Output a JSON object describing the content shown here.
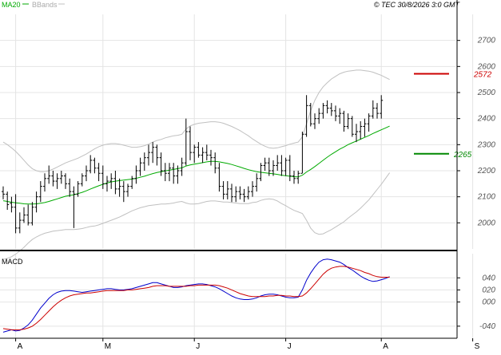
{
  "header": {
    "ma_label": "MA20",
    "bb_label": "BBands",
    "copyright": "© TEC 30/8/2026 3:0 GMT"
  },
  "colors": {
    "price_bar": "#000000",
    "ma20": "#00aa00",
    "bbands": "#c0c0c0",
    "resistance": "#cc0000",
    "support": "#008800",
    "macd_line": "#0000cc",
    "signal_line": "#cc0000",
    "grid": "#e4e4e4"
  },
  "chart_data": [
    {
      "type": "ohlc",
      "panel": "price",
      "ylim": [
        1900,
        2800
      ],
      "y_ticks": [
        2000,
        2100,
        2200,
        2300,
        2400,
        2500,
        2600,
        2700
      ],
      "x_month_labels": [
        {
          "label": "A",
          "index": 3
        },
        {
          "label": "M",
          "index": 24
        },
        {
          "label": "J",
          "index": 46
        },
        {
          "label": "J",
          "index": 68
        },
        {
          "label": "A",
          "index": 91
        },
        {
          "label": "S",
          "index": 113
        }
      ],
      "levels": [
        {
          "name": "resistance",
          "value": 2572,
          "label": "2572"
        },
        {
          "name": "support",
          "value": 2265,
          "label": "2265"
        }
      ],
      "bars": [
        [
          2120,
          2140,
          2090,
          2110
        ],
        [
          2110,
          2120,
          2050,
          2070
        ],
        [
          2075,
          2100,
          2040,
          2060
        ],
        [
          2060,
          2110,
          1960,
          1980
        ],
        [
          1980,
          2040,
          1960,
          2010
        ],
        [
          2010,
          2060,
          2000,
          2030
        ],
        [
          2030,
          2070,
          1990,
          2000
        ],
        [
          2000,
          2080,
          1990,
          2060
        ],
        [
          2060,
          2120,
          2040,
          2100
        ],
        [
          2100,
          2160,
          2080,
          2140
        ],
        [
          2140,
          2190,
          2120,
          2170
        ],
        [
          2170,
          2220,
          2150,
          2180
        ],
        [
          2180,
          2200,
          2140,
          2160
        ],
        [
          2160,
          2190,
          2130,
          2170
        ],
        [
          2170,
          2200,
          2150,
          2180
        ],
        [
          2180,
          2190,
          2130,
          2150
        ],
        [
          2150,
          2170,
          2100,
          2120
        ],
        [
          2120,
          2140,
          1980,
          2110
        ],
        [
          2110,
          2160,
          2100,
          2150
        ],
        [
          2150,
          2190,
          2140,
          2180
        ],
        [
          2180,
          2220,
          2160,
          2200
        ],
        [
          2200,
          2260,
          2190,
          2240
        ],
        [
          2240,
          2250,
          2190,
          2210
        ],
        [
          2210,
          2230,
          2160,
          2190
        ],
        [
          2190,
          2220,
          2130,
          2150
        ],
        [
          2150,
          2180,
          2120,
          2160
        ],
        [
          2160,
          2190,
          2130,
          2170
        ],
        [
          2170,
          2200,
          2110,
          2130
        ],
        [
          2130,
          2170,
          2100,
          2140
        ],
        [
          2140,
          2160,
          2080,
          2120
        ],
        [
          2120,
          2150,
          2100,
          2140
        ],
        [
          2140,
          2180,
          2130,
          2170
        ],
        [
          2170,
          2220,
          2150,
          2200
        ],
        [
          2200,
          2250,
          2180,
          2230
        ],
        [
          2230,
          2270,
          2200,
          2250
        ],
        [
          2250,
          2300,
          2220,
          2270
        ],
        [
          2270,
          2310,
          2230,
          2290
        ],
        [
          2290,
          2300,
          2220,
          2250
        ],
        [
          2250,
          2270,
          2180,
          2200
        ],
        [
          2200,
          2230,
          2160,
          2190
        ],
        [
          2190,
          2230,
          2160,
          2210
        ],
        [
          2210,
          2230,
          2150,
          2180
        ],
        [
          2180,
          2220,
          2150,
          2200
        ],
        [
          2200,
          2250,
          2180,
          2230
        ],
        [
          2230,
          2400,
          2220,
          2350
        ],
        [
          2350,
          2370,
          2240,
          2270
        ],
        [
          2270,
          2300,
          2230,
          2290
        ],
        [
          2290,
          2310,
          2250,
          2260
        ],
        [
          2260,
          2290,
          2230,
          2270
        ],
        [
          2270,
          2300,
          2240,
          2260
        ],
        [
          2260,
          2280,
          2220,
          2250
        ],
        [
          2250,
          2270,
          2190,
          2210
        ],
        [
          2210,
          2230,
          2120,
          2140
        ],
        [
          2140,
          2160,
          2090,
          2110
        ],
        [
          2110,
          2160,
          2090,
          2130
        ],
        [
          2130,
          2150,
          2080,
          2100
        ],
        [
          2100,
          2140,
          2080,
          2120
        ],
        [
          2120,
          2140,
          2090,
          2110
        ],
        [
          2110,
          2130,
          2080,
          2100
        ],
        [
          2100,
          2140,
          2090,
          2120
        ],
        [
          2120,
          2160,
          2100,
          2140
        ],
        [
          2140,
          2190,
          2120,
          2170
        ],
        [
          2170,
          2230,
          2160,
          2220
        ],
        [
          2220,
          2250,
          2200,
          2230
        ],
        [
          2230,
          2250,
          2180,
          2200
        ],
        [
          2200,
          2240,
          2180,
          2220
        ],
        [
          2220,
          2260,
          2200,
          2230
        ],
        [
          2230,
          2260,
          2180,
          2200
        ],
        [
          2200,
          2250,
          2180,
          2240
        ],
        [
          2240,
          2260,
          2160,
          2180
        ],
        [
          2180,
          2200,
          2150,
          2170
        ],
        [
          2170,
          2200,
          2150,
          2190
        ],
        [
          2190,
          2350,
          2190,
          2340
        ],
        [
          2340,
          2490,
          2330,
          2450
        ],
        [
          2450,
          2460,
          2370,
          2380
        ],
        [
          2380,
          2420,
          2360,
          2400
        ],
        [
          2400,
          2440,
          2380,
          2420
        ],
        [
          2420,
          2460,
          2400,
          2450
        ],
        [
          2450,
          2470,
          2420,
          2440
        ],
        [
          2440,
          2460,
          2410,
          2430
        ],
        [
          2430,
          2450,
          2390,
          2410
        ],
        [
          2410,
          2440,
          2380,
          2420
        ],
        [
          2420,
          2430,
          2350,
          2370
        ],
        [
          2370,
          2420,
          2360,
          2400
        ],
        [
          2400,
          2410,
          2330,
          2340
        ],
        [
          2340,
          2380,
          2310,
          2350
        ],
        [
          2350,
          2390,
          2320,
          2370
        ],
        [
          2370,
          2400,
          2330,
          2380
        ],
        [
          2380,
          2420,
          2350,
          2410
        ],
        [
          2410,
          2470,
          2400,
          2440
        ],
        [
          2440,
          2460,
          2400,
          2420
        ],
        [
          2420,
          2490,
          2400,
          2470
        ]
      ],
      "ma20": [
        2085,
        2082,
        2079,
        2077,
        2075,
        2073,
        2072,
        2072,
        2073,
        2075,
        2078,
        2082,
        2087,
        2092,
        2097,
        2102,
        2105,
        2108,
        2112,
        2117,
        2123,
        2130,
        2136,
        2142,
        2148,
        2153,
        2157,
        2160,
        2162,
        2164,
        2166,
        2168,
        2171,
        2175,
        2179,
        2184,
        2189,
        2193,
        2196,
        2199,
        2202,
        2205,
        2208,
        2211,
        2218,
        2222,
        2225,
        2228,
        2231,
        2234,
        2236,
        2236,
        2234,
        2231,
        2228,
        2224,
        2219,
        2214,
        2209,
        2204,
        2200,
        2196,
        2194,
        2192,
        2190,
        2188,
        2186,
        2183,
        2181,
        2179,
        2177,
        2176,
        2183,
        2195,
        2205,
        2216,
        2228,
        2240,
        2252,
        2263,
        2273,
        2283,
        2291,
        2300,
        2307,
        2314,
        2321,
        2328,
        2335,
        2343,
        2350,
        2357,
        2364,
        2371
      ],
      "bb_upper": [
        2310,
        2300,
        2288,
        2274,
        2258,
        2240,
        2222,
        2208,
        2200,
        2196,
        2196,
        2200,
        2206,
        2214,
        2222,
        2230,
        2236,
        2242,
        2248,
        2256,
        2264,
        2274,
        2284,
        2292,
        2298,
        2302,
        2304,
        2304,
        2302,
        2298,
        2294,
        2290,
        2290,
        2292,
        2296,
        2302,
        2310,
        2316,
        2320,
        2326,
        2330,
        2334,
        2336,
        2340,
        2360,
        2372,
        2378,
        2382,
        2384,
        2386,
        2388,
        2388,
        2386,
        2382,
        2376,
        2370,
        2362,
        2354,
        2344,
        2334,
        2322,
        2312,
        2302,
        2294,
        2288,
        2286,
        2288,
        2292,
        2296,
        2302,
        2306,
        2310,
        2330,
        2380,
        2430,
        2470,
        2500,
        2522,
        2538,
        2552,
        2562,
        2572,
        2578,
        2582,
        2584,
        2586,
        2586,
        2584,
        2582,
        2578,
        2572,
        2566,
        2558,
        2550
      ],
      "bb_lower": [
        1860,
        1864,
        1870,
        1880,
        1892,
        1906,
        1922,
        1936,
        1946,
        1954,
        1960,
        1964,
        1968,
        1970,
        1972,
        1974,
        1974,
        1974,
        1976,
        1978,
        1982,
        1986,
        1988,
        1992,
        1998,
        2004,
        2010,
        2016,
        2022,
        2030,
        2038,
        2046,
        2052,
        2058,
        2062,
        2066,
        2068,
        2070,
        2072,
        2072,
        2074,
        2076,
        2080,
        2082,
        2076,
        2072,
        2072,
        2074,
        2078,
        2082,
        2084,
        2084,
        2082,
        2080,
        2080,
        2078,
        2076,
        2074,
        2074,
        2074,
        2078,
        2080,
        2086,
        2090,
        2092,
        2090,
        2084,
        2074,
        2066,
        2056,
        2048,
        2042,
        2036,
        2010,
        1980,
        1962,
        1956,
        1958,
        1966,
        1974,
        1984,
        1994,
        2004,
        2018,
        2030,
        2042,
        2056,
        2072,
        2088,
        2108,
        2128,
        2148,
        2170,
        2192
      ]
    },
    {
      "type": "line",
      "panel": "macd",
      "title": "MACD",
      "ylim": [
        -60,
        80
      ],
      "y_ticks": [
        -40,
        0,
        20,
        40
      ],
      "y_tick_labels": [
        "-040",
        "000",
        "020",
        "040"
      ],
      "series": [
        {
          "name": "MACD",
          "values": [
            -50,
            -48,
            -46,
            -48,
            -47,
            -43,
            -38,
            -30,
            -20,
            -10,
            -2,
            6,
            12,
            16,
            18,
            19,
            19,
            18,
            17,
            16,
            17,
            18,
            19,
            20,
            21,
            22,
            22,
            21,
            20,
            20,
            21,
            22,
            24,
            26,
            28,
            30,
            32,
            32,
            30,
            28,
            26,
            24,
            24,
            25,
            27,
            28,
            29,
            30,
            30,
            29,
            27,
            25,
            22,
            18,
            14,
            10,
            7,
            5,
            4,
            4,
            5,
            7,
            10,
            12,
            13,
            13,
            12,
            10,
            8,
            7,
            7,
            8,
            20,
            36,
            48,
            58,
            66,
            70,
            71,
            70,
            68,
            66,
            62,
            57,
            53,
            48,
            43,
            39,
            36,
            34,
            35,
            37,
            39,
            42
          ]
        },
        {
          "name": "Signal",
          "values": [
            -44,
            -45,
            -46,
            -46,
            -46,
            -45,
            -43,
            -40,
            -35,
            -29,
            -22,
            -15,
            -8,
            -2,
            3,
            7,
            10,
            12,
            13,
            14,
            15,
            15,
            16,
            17,
            18,
            19,
            19,
            19,
            19,
            19,
            20,
            20,
            21,
            22,
            23,
            24,
            26,
            27,
            27,
            27,
            26,
            26,
            26,
            26,
            26,
            27,
            27,
            28,
            28,
            28,
            28,
            28,
            27,
            25,
            23,
            20,
            17,
            14,
            12,
            10,
            9,
            9,
            9,
            9,
            10,
            10,
            11,
            11,
            10,
            10,
            9,
            9,
            10,
            15,
            22,
            30,
            38,
            46,
            52,
            56,
            58,
            59,
            59,
            58,
            56,
            54,
            52,
            49,
            47,
            44,
            42,
            41,
            41,
            41
          ]
        }
      ]
    }
  ]
}
